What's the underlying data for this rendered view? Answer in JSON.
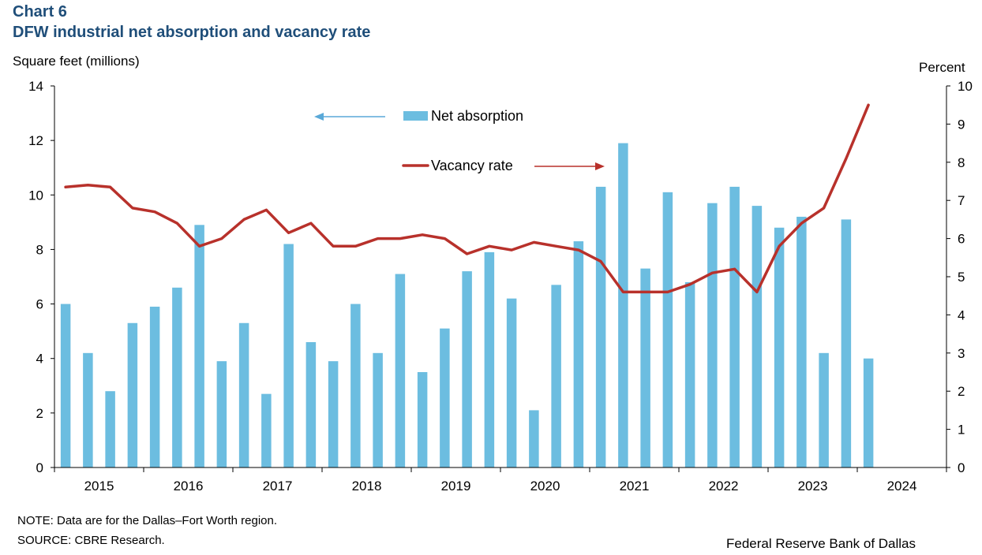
{
  "header": {
    "kicker": "Chart 6",
    "title": "DFW industrial net absorption and vacancy rate"
  },
  "axes": {
    "left_unit": "Square feet (millions)",
    "right_unit": "Percent"
  },
  "footer": {
    "note": "NOTE: Data are for the Dallas–Fort Worth region.",
    "source": "SOURCE: CBRE Research.",
    "credit": "Federal Reserve Bank of Dallas"
  },
  "colors": {
    "bar": "#6cbde0",
    "line": "#b8312b",
    "axis": "#000000",
    "title": "#1f4e79"
  },
  "chart_data": {
    "type": "bar",
    "title": "DFW industrial net absorption and vacancy rate",
    "xlabel": "",
    "ylabel": "Square feet (millions)",
    "y2label": "Percent",
    "ylim": [
      0,
      14
    ],
    "y2lim": [
      0,
      10
    ],
    "yticks": [
      "0",
      "2",
      "4",
      "6",
      "8",
      "10",
      "12",
      "14"
    ],
    "y2ticks": [
      "0",
      "1",
      "2",
      "3",
      "4",
      "5",
      "6",
      "7",
      "8",
      "9",
      "10"
    ],
    "year_labels": [
      "2015",
      "2016",
      "2017",
      "2018",
      "2019",
      "2020",
      "2021",
      "2022",
      "2023",
      "2024"
    ],
    "quarters_per_year": 4,
    "legend": {
      "bar_label": "Net absorption",
      "line_label": "Vacancy rate",
      "placement": "top-center"
    },
    "series": [
      {
        "name": "Net absorption",
        "kind": "bar",
        "axis": "left",
        "values": [
          6.0,
          4.2,
          2.8,
          5.3,
          5.9,
          6.6,
          8.9,
          3.9,
          5.3,
          2.7,
          8.2,
          4.6,
          3.9,
          6.0,
          4.2,
          7.1,
          3.5,
          5.1,
          7.2,
          7.9,
          6.2,
          2.1,
          6.7,
          8.3,
          10.3,
          11.9,
          7.3,
          10.1,
          6.8,
          9.7,
          10.3,
          9.6,
          8.8,
          9.2,
          4.2,
          9.1,
          4.0
        ]
      },
      {
        "name": "Vacancy rate",
        "kind": "line",
        "axis": "right",
        "values": [
          7.35,
          7.4,
          7.35,
          6.8,
          6.7,
          6.4,
          5.8,
          6.0,
          6.5,
          6.75,
          6.15,
          6.4,
          5.8,
          5.8,
          6.0,
          6.0,
          6.1,
          6.0,
          5.6,
          5.8,
          5.7,
          5.9,
          5.8,
          5.7,
          5.4,
          4.6,
          4.6,
          4.6,
          4.8,
          5.1,
          5.2,
          4.6,
          5.8,
          6.4,
          6.8,
          8.1,
          9.5
        ]
      }
    ]
  }
}
